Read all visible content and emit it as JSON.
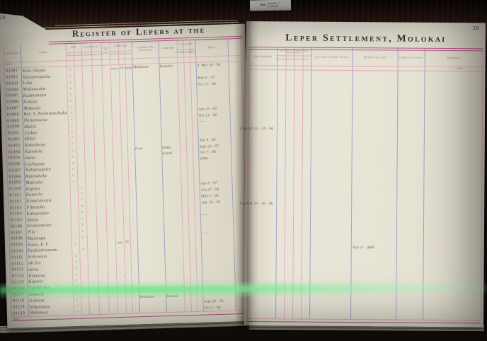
{
  "sticker": {
    "number": "263",
    "line1": "HANSEN'S",
    "line2": "DISEASE"
  },
  "colors": {
    "rule_pink": "#dfa6b8",
    "rule_purple": "#9598c6",
    "rule_magenta": "#b04a7e",
    "page_cream": "#e6e2d4",
    "ink": "#67604f",
    "green_band": "#6ee88c",
    "wood": "#3a2117"
  },
  "left_page": {
    "page_number": "28",
    "title": "Register of Lepers at the",
    "totals_top": "Totals",
    "totals_bottom": "Totals",
    "headers": {
      "number": "Number",
      "name": "Name",
      "sex": "Sex",
      "male": "Male",
      "female": "Female",
      "nationality": "Nationality",
      "hawaiian": "Hawaiian",
      "foreigner": "Foreigner",
      "year_of_birth": "Year of Birth",
      "admitted": "Admitted",
      "adm_month": "Month",
      "adm_date": "Date",
      "adm_year": "Year",
      "district": "District or Locality",
      "quarters": "Quarters",
      "civil_state": "Civil State",
      "married": "Married",
      "unmarried": "Unmarried",
      "not_known": "Not Known",
      "died": "Died"
    }
  },
  "right_page": {
    "page_number": "28",
    "title": "Leper Settlement, Molokai",
    "totals": "Totals",
    "headers": {
      "discharged": "Discharged",
      "nature": "Nature of Further Leprous Manifestation",
      "n1": "Anesthetic",
      "n2": "Nodular",
      "n3": "Tubercular",
      "n4": "Mixed",
      "locality": "Locality of First Lesion",
      "history": "History of Case",
      "relations": "Leprous Relations",
      "remarks": "Remarks"
    }
  },
  "rows": [
    {
      "n": "01081",
      "name": "Kale Alapai",
      "s": "M",
      "m": "Jan'y",
      "d": "22",
      "y": "1896",
      "di": "Makawao",
      "q": "Kamalo",
      "dd": "d. Mar 26 - 96"
    },
    {
      "n": "01082",
      "name": "Kaunamakaha",
      "s": "M"
    },
    {
      "n": "01083",
      "name": "Loka",
      "s": "M",
      "dd": "Mar 6 - 97"
    },
    {
      "n": "01084",
      "name": "Makuanaka",
      "s": "M",
      "dd": "Oct 27 - 96"
    },
    {
      "n": "01085",
      "name": "Kaamanaka",
      "s": "M"
    },
    {
      "n": "01086",
      "name": "Kahula",
      "s": "M"
    },
    {
      "n": "01087",
      "name": "Makaula",
      "s": "M"
    },
    {
      "n": "01088",
      "name": "Rev. S. Kahalemahuka",
      "s": "M",
      "dd": "Jan 22 - 96"
    },
    {
      "n": "01089",
      "name": "Nainamanai",
      "s": "M",
      "dd": "Oct 21 - 96"
    },
    {
      "n": "01090",
      "name": "Makia",
      "s": "M",
      "dd": "——",
      "dis": "Expired 22 - 10 - 96"
    },
    {
      "n": "01091",
      "name": "Liahue",
      "s": "M"
    },
    {
      "n": "01092",
      "name": "Mikia",
      "s": "M"
    },
    {
      "n": "01093",
      "name": "Kamahana",
      "s": "M",
      "dd": "Jan 9 - 96"
    },
    {
      "n": "01094",
      "name": "Kamaula",
      "s": "M",
      "di": "Ewa",
      "q": "Oahu",
      "dd": "Sept 20 - 97"
    },
    {
      "n": "01095",
      "name": "Aana",
      "s": "M",
      "q": "Kauai",
      "dd": "Jan 7 - 96"
    },
    {
      "n": "01096",
      "name": "Luahapaa",
      "s": "M",
      "dd": "1896"
    },
    {
      "n": "01097",
      "name": "Kekupuupuhi",
      "s": "M"
    },
    {
      "n": "01098",
      "name": "Kaunakala",
      "s": "M"
    },
    {
      "n": "01099",
      "name": "Mahiuka",
      "s": "M"
    },
    {
      "n": "01100",
      "name": "Kepola",
      "s": "F",
      "dd": "Apr 8 - 97"
    },
    {
      "n": "01101",
      "name": "Kamiela",
      "s": "F",
      "dd": "Jan 27 - 98"
    },
    {
      "n": "01102",
      "name": "Kamelamaile",
      "s": "F",
      "dd": "May 2 - 96",
      "dis": "Expired 29 - 10 - 96"
    },
    {
      "n": "01103",
      "name": "Piimauka",
      "s": "F",
      "dd": "July 20 - 96"
    },
    {
      "n": "01104",
      "name": "Kahuanaka",
      "s": "F"
    },
    {
      "n": "01105",
      "name": "Malia",
      "s": "F",
      "dd": "——"
    },
    {
      "n": "01106",
      "name": "Kealoamalie",
      "s": "F"
    },
    {
      "n": "01107",
      "name": "Pilo",
      "s": "F"
    },
    {
      "n": "01108",
      "name": "Maunupa",
      "s": "F",
      "dd": "——"
    },
    {
      "n": "01109",
      "name": "Kaau, P. Y.",
      "s": "M",
      "m": "July",
      "d": "25",
      "h": "July 4 - 1896"
    },
    {
      "n": "01110",
      "name": "Keakaakamanu",
      "s": "F"
    },
    {
      "n": "01111",
      "name": "Solomona",
      "s": "M"
    },
    {
      "n": "01112",
      "name": "Ah Yee",
      "s": "M"
    },
    {
      "n": "01113",
      "name": "Aana",
      "s": "M"
    },
    {
      "n": "01114",
      "name": "Kekuano",
      "s": "M"
    },
    {
      "n": "01115",
      "name": "Kapulu",
      "s": "M"
    },
    {
      "n": "01116",
      "name": "Litamheka",
      "s": "M"
    },
    {
      "n": "01117",
      "name": "Kapaile",
      "s": "M"
    },
    {
      "n": "01118",
      "name": "Kahana",
      "s": "M",
      "di": "Honokaa",
      "q": "Hawaii"
    },
    {
      "n": "01119",
      "name": "Nakamana",
      "s": "M",
      "dd": "Sept 26 - 96"
    },
    {
      "n": "01120",
      "name": "Mahiawa",
      "s": "M",
      "dd": "Oct 2 - 96"
    }
  ]
}
